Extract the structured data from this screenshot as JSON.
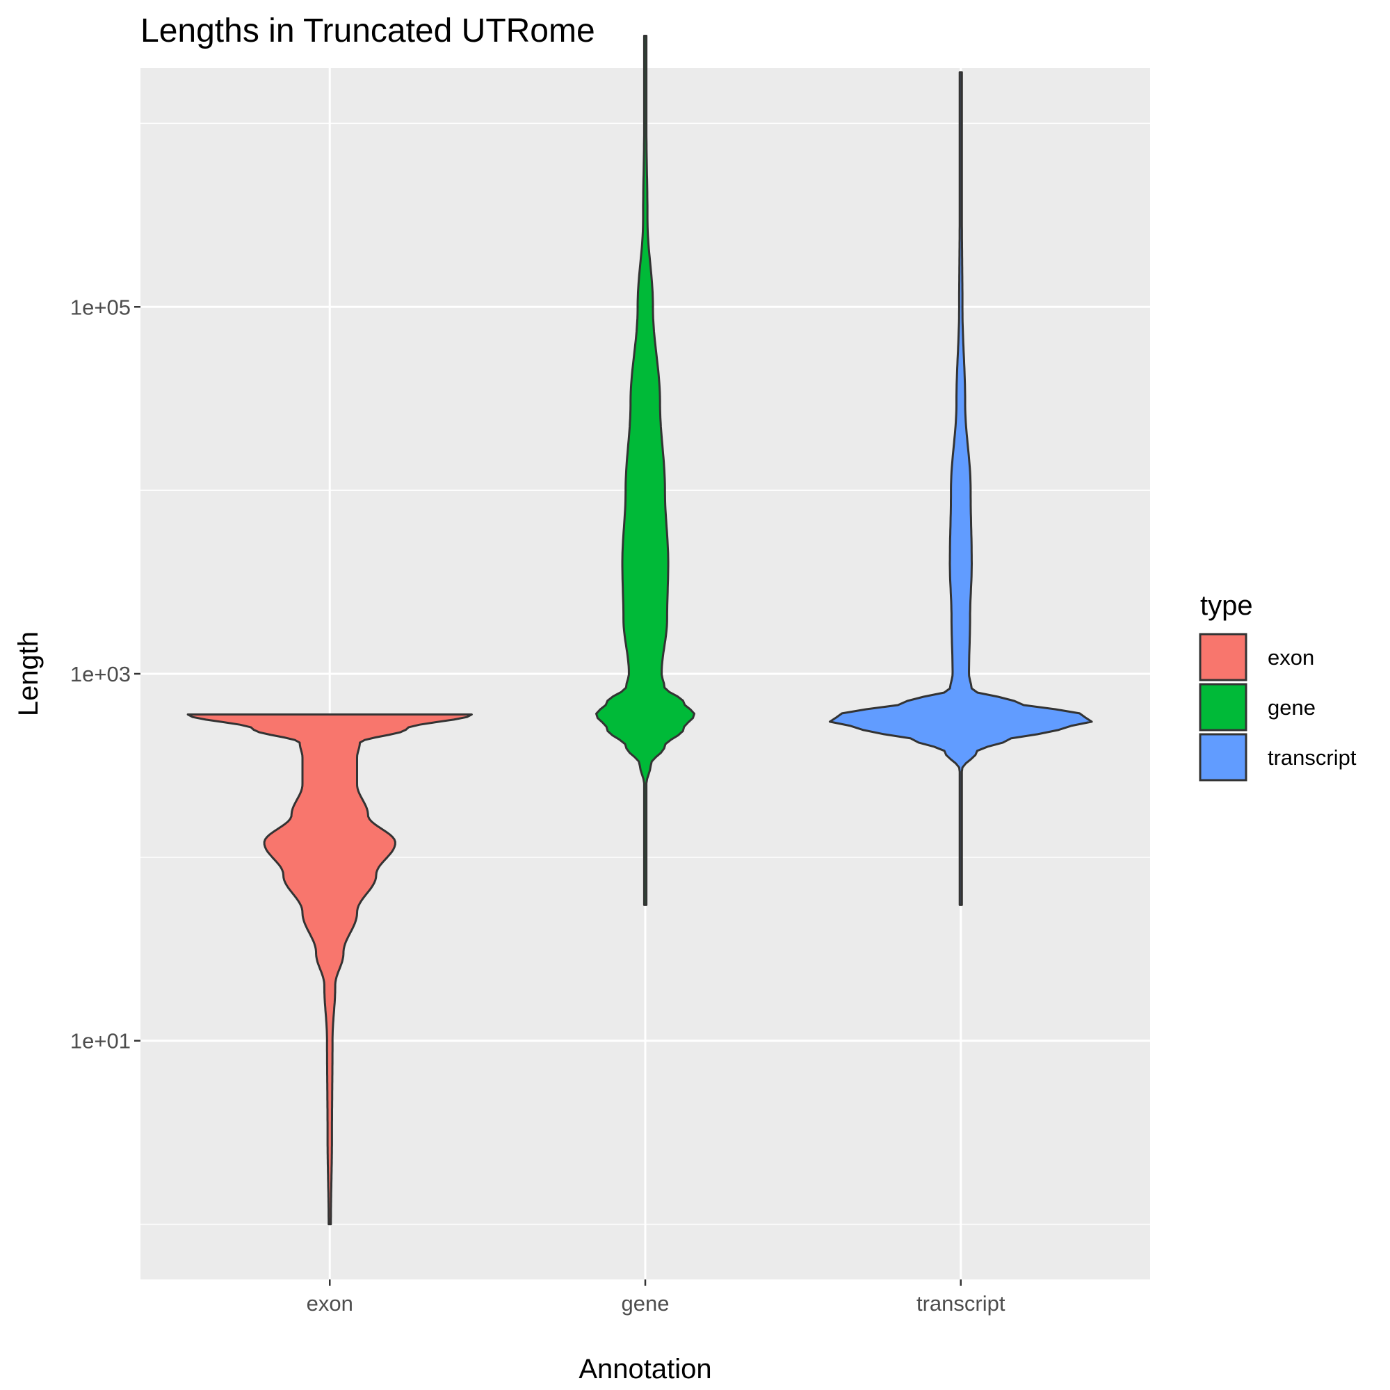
{
  "chart_data": {
    "type": "violin",
    "title": "Lengths in Truncated UTRome",
    "xlabel": "Annotation",
    "ylabel": "Length",
    "y_scale": "log10",
    "ylim": [
      0.5,
      2000000
    ],
    "y_ticks": [
      {
        "value": 10,
        "label": "1e+01"
      },
      {
        "value": 1000,
        "label": "1e+03"
      },
      {
        "value": 100000,
        "label": "1e+05"
      }
    ],
    "y_minor_ticks": [
      1,
      100,
      10000,
      1000000
    ],
    "grid": true,
    "categories": [
      "exon",
      "gene",
      "transcript"
    ],
    "legend": {
      "title": "type",
      "position": "right",
      "entries": [
        {
          "label": "exon",
          "color": "#F8766D"
        },
        {
          "label": "gene",
          "color": "#00BA38"
        },
        {
          "label": "transcript",
          "color": "#619CFF"
        }
      ]
    },
    "series": [
      {
        "category": "exon",
        "color": "#F8766D",
        "min": 1,
        "max": 600,
        "density": [
          [
            1,
            0.002
          ],
          [
            3,
            0.004
          ],
          [
            10,
            0.005
          ],
          [
            20,
            0.01
          ],
          [
            30,
            0.025
          ],
          [
            50,
            0.05
          ],
          [
            80,
            0.085
          ],
          [
            120,
            0.12
          ],
          [
            170,
            0.07
          ],
          [
            250,
            0.05
          ],
          [
            350,
            0.05
          ],
          [
            420,
            0.055
          ],
          [
            500,
            0.14
          ],
          [
            600,
            0.26
          ]
        ]
      },
      {
        "category": "gene",
        "color": "#00BA38",
        "min": 55,
        "max": 3000000,
        "density": [
          [
            55,
            0.002
          ],
          [
            150,
            0.002
          ],
          [
            250,
            0.002
          ],
          [
            320,
            0.01
          ],
          [
            400,
            0.035
          ],
          [
            500,
            0.07
          ],
          [
            600,
            0.09
          ],
          [
            700,
            0.07
          ],
          [
            850,
            0.035
          ],
          [
            1000,
            0.03
          ],
          [
            2000,
            0.04
          ],
          [
            4000,
            0.042
          ],
          [
            10000,
            0.036
          ],
          [
            30000,
            0.027
          ],
          [
            100000,
            0.014
          ],
          [
            300000,
            0.004
          ],
          [
            1000000,
            0.002
          ],
          [
            3000000,
            0.002
          ]
        ]
      },
      {
        "category": "transcript",
        "color": "#619CFF",
        "min": 55,
        "max": 1900000,
        "density": [
          [
            55,
            0.002
          ],
          [
            150,
            0.002
          ],
          [
            300,
            0.002
          ],
          [
            380,
            0.03
          ],
          [
            430,
            0.08
          ],
          [
            500,
            0.18
          ],
          [
            550,
            0.24
          ],
          [
            600,
            0.22
          ],
          [
            700,
            0.1
          ],
          [
            820,
            0.02
          ],
          [
            1000,
            0.015
          ],
          [
            2000,
            0.017
          ],
          [
            4000,
            0.02
          ],
          [
            10000,
            0.018
          ],
          [
            30000,
            0.008
          ],
          [
            100000,
            0.003
          ],
          [
            300000,
            0.002
          ],
          [
            1900000,
            0.002
          ]
        ]
      }
    ]
  }
}
